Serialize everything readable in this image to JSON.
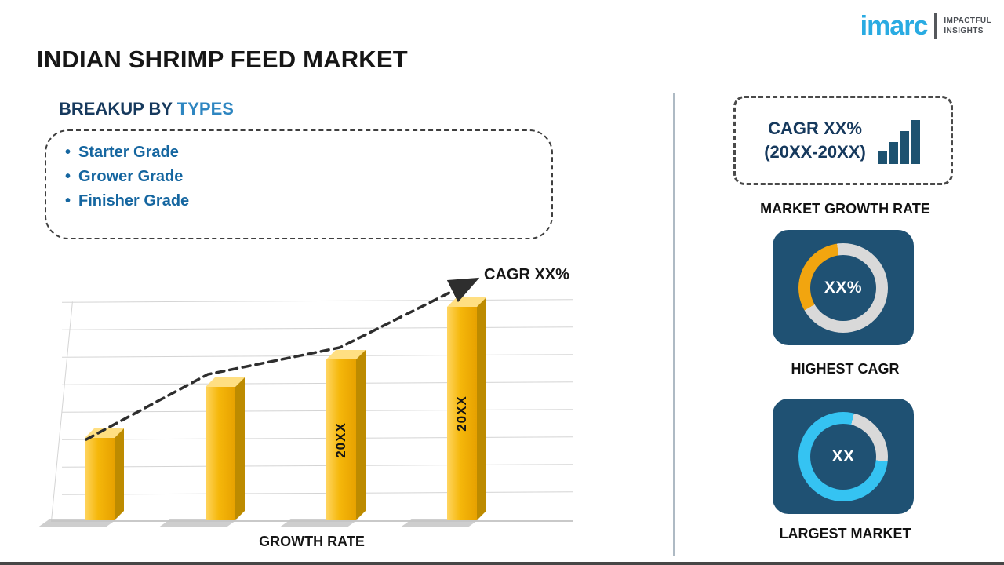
{
  "header": {
    "title": "INDIAN SHRIMP FEED MARKET",
    "logo": {
      "brand": "imarc",
      "tagline_line1": "IMPACTFUL",
      "tagline_line2": "INSIGHTS"
    }
  },
  "breakup": {
    "heading_prefix": "BREAKUP BY ",
    "heading_highlight": "TYPES",
    "bullet": "•",
    "items": [
      "Starter Grade",
      "Grower Grade",
      "Finisher Grade"
    ]
  },
  "chart_data": {
    "type": "bar",
    "title": "",
    "xlabel": "GROWTH RATE",
    "ylabel": "",
    "categories": [
      "",
      "",
      "20XX",
      "20XX"
    ],
    "values": [
      36,
      58,
      70,
      93
    ],
    "ylim": [
      0,
      100
    ],
    "grid": true,
    "bar_color": "#f5b70a",
    "annotation": "CAGR XX%",
    "trend_polyline": [
      [
        45,
        215
      ],
      [
        200,
        132
      ],
      [
        368,
        98
      ],
      [
        540,
        12
      ]
    ],
    "note": "No numeric axis is shown in the figure; values are relative bar heights as a percent of the plot height"
  },
  "right_panel": {
    "cagr_box": {
      "line1": "CAGR XX%",
      "line2": "(20XX-20XX)"
    },
    "market_growth_caption": "MARKET GROWTH RATE",
    "highest_cagr": {
      "value": "XX%",
      "caption": "HIGHEST CAGR",
      "donut": {
        "base_color": "#d9d9d9",
        "segment_color": "#f2a50f",
        "segment_from_deg": 240,
        "segment_to_deg": 352
      }
    },
    "largest_market": {
      "value": "XX",
      "caption": "LARGEST MARKET",
      "donut": {
        "base_color": "#35c3f2",
        "segment_color": "#d9d9d9",
        "segment_from_deg": 14,
        "segment_to_deg": 96
      }
    }
  },
  "colors": {
    "navy_tile": "#1f5173",
    "heading_dark": "#16395d",
    "heading_accent": "#2e86c1",
    "item_blue": "#1566a0",
    "logo_cyan": "#29abe2",
    "icon_navy": "#1d5270"
  }
}
